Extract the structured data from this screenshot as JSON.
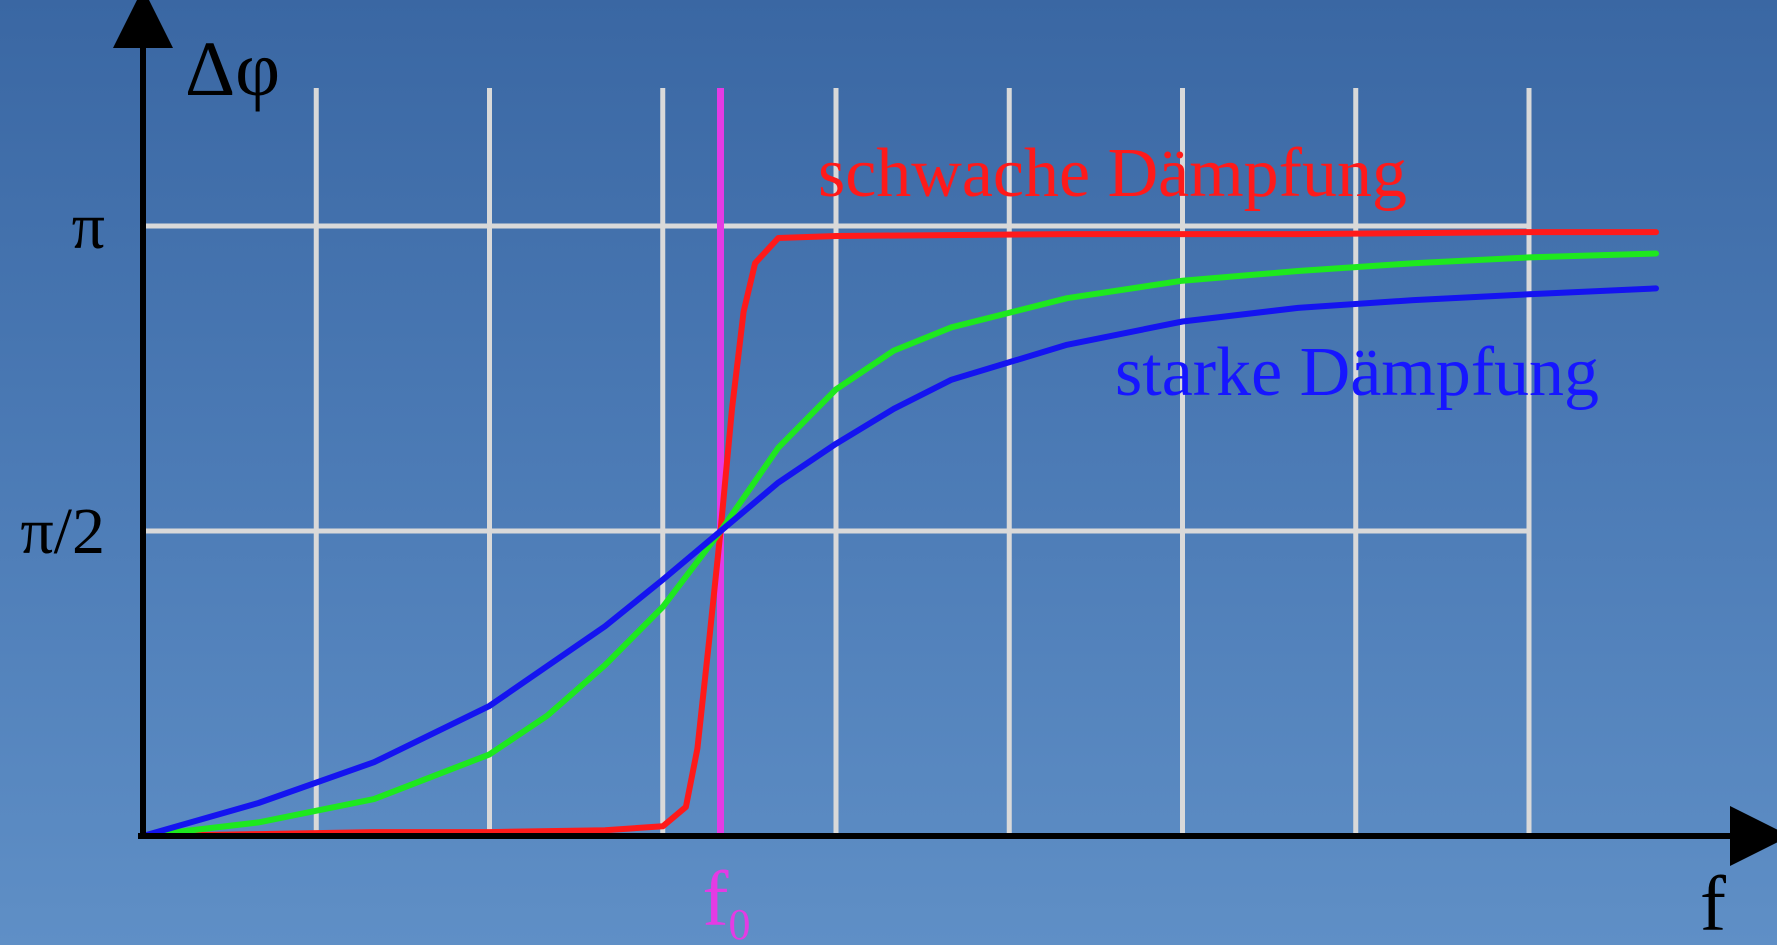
{
  "chart_data": {
    "type": "line",
    "xlabel": "f",
    "ylabel": "Δφ",
    "marker": {
      "label": "f",
      "subscript": "0",
      "x": 5,
      "color": "#e43be4"
    },
    "xlim": [
      0,
      14
    ],
    "ylim": [
      0,
      3.1416
    ],
    "grid": true,
    "y_ticks": [
      {
        "value": 1.5708,
        "label": "π/2"
      },
      {
        "value": 3.1416,
        "label": "π"
      }
    ],
    "x_gridlines": [
      1.5,
      3,
      4.5,
      6,
      7.5,
      9,
      10.5,
      12
    ],
    "annotations": [
      {
        "text": "schwache Dämpfung",
        "color": "#ff1a1a",
        "series": "weak"
      },
      {
        "text": "starke Dämpfung",
        "color": "#1616ff",
        "series": "strong"
      }
    ],
    "series": [
      {
        "id": "weak",
        "color": "#ff1a1a",
        "x": [
          0,
          1,
          2,
          3,
          4,
          4.5,
          4.7,
          4.8,
          4.9,
          5,
          5.1,
          5.2,
          5.3,
          5.5,
          6,
          8,
          10,
          12,
          13.1
        ],
        "y": [
          0,
          0.01,
          0.02,
          0.02,
          0.03,
          0.05,
          0.15,
          0.45,
          1.0,
          1.57,
          2.2,
          2.7,
          2.95,
          3.08,
          3.09,
          3.1,
          3.1,
          3.11,
          3.11
        ]
      },
      {
        "id": "medium",
        "color": "#1ee81e",
        "x": [
          0,
          1,
          2,
          3,
          3.5,
          4,
          4.5,
          5,
          5.5,
          6,
          6.5,
          7,
          8,
          9,
          10,
          11,
          12,
          13.1
        ],
        "y": [
          0,
          0.07,
          0.19,
          0.42,
          0.62,
          0.88,
          1.18,
          1.57,
          2.0,
          2.3,
          2.5,
          2.62,
          2.77,
          2.86,
          2.91,
          2.95,
          2.98,
          3.0
        ]
      },
      {
        "id": "strong",
        "color": "#1414f0",
        "x": [
          0,
          1,
          2,
          3,
          4,
          4.5,
          5,
          5.5,
          6,
          6.5,
          7,
          8,
          9,
          10,
          11,
          12,
          13.1
        ],
        "y": [
          0,
          0.17,
          0.38,
          0.67,
          1.08,
          1.32,
          1.57,
          1.82,
          2.02,
          2.2,
          2.35,
          2.53,
          2.65,
          2.72,
          2.76,
          2.79,
          2.82
        ]
      }
    ]
  }
}
